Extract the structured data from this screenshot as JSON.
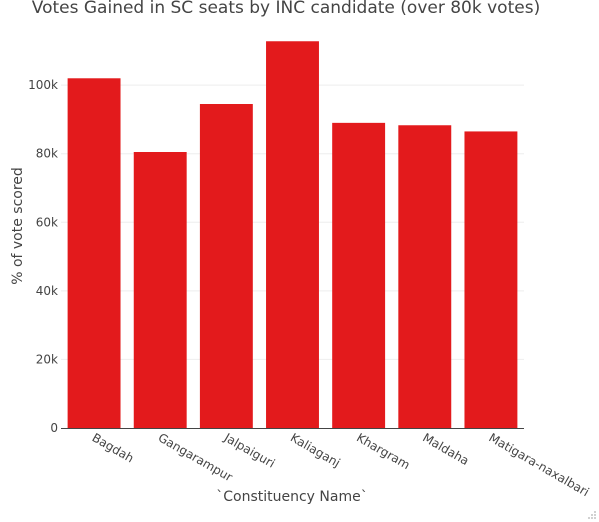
{
  "chart_data": {
    "type": "bar",
    "title": "Votes Gained in SC seats by INC candidate (over 80k votes)",
    "xlabel": "`Constituency Name`",
    "ylabel": "% of vote scored",
    "categories": [
      "Bagdah",
      "Gangarampur",
      "Jalpaiguri",
      "Kaliaganj",
      "Khargram",
      "Maldaha",
      "Matigara-naxalbari"
    ],
    "values": [
      102000,
      80500,
      94500,
      112800,
      89000,
      88300,
      86500
    ],
    "ylim": [
      0,
      119000
    ],
    "yticks": [
      {
        "value": 0,
        "label": "0"
      },
      {
        "value": 20000,
        "label": "20k"
      },
      {
        "value": 40000,
        "label": "40k"
      },
      {
        "value": 60000,
        "label": "60k"
      },
      {
        "value": 80000,
        "label": "80k"
      },
      {
        "value": 100000,
        "label": "100k"
      }
    ],
    "colors": {
      "bar": "#e31a1c"
    },
    "grid": true
  }
}
